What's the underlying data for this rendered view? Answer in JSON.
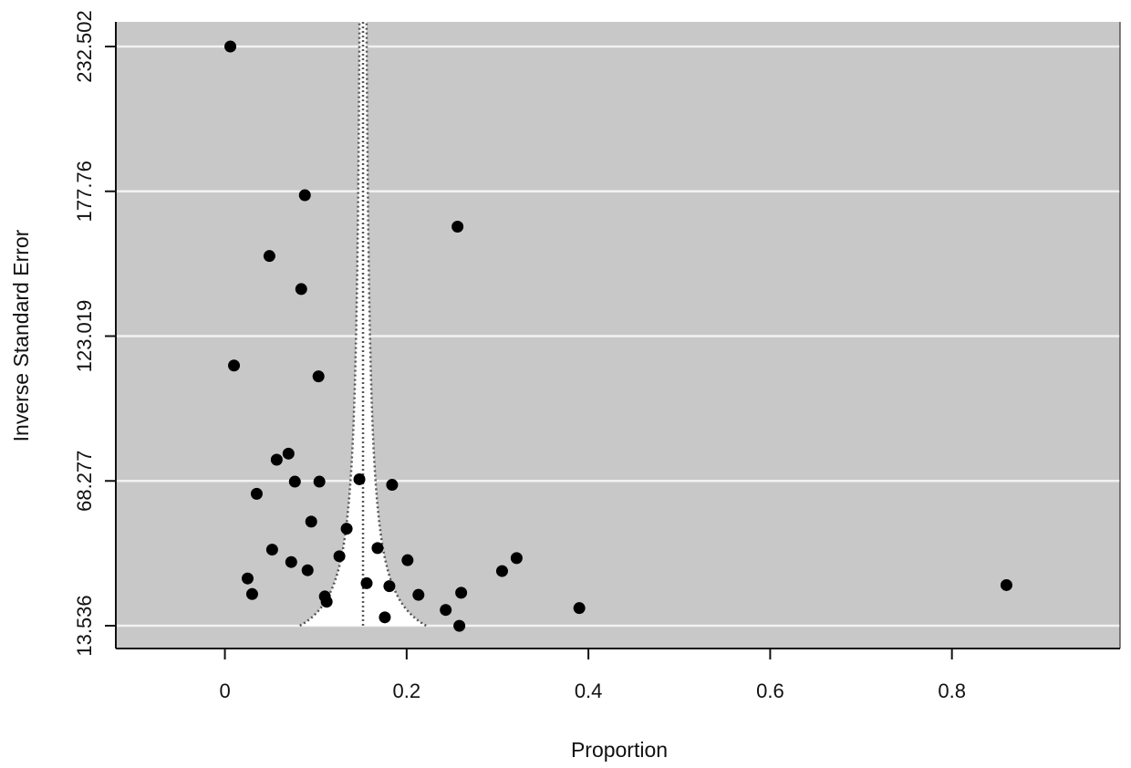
{
  "chart_data": {
    "type": "scatter",
    "title": "",
    "xlabel": "Proportion",
    "ylabel": "Inverse Standard Error",
    "xlim": [
      -0.12,
      0.985
    ],
    "ylim": [
      13.536,
      232.502
    ],
    "x_ticks": [
      0,
      0.2,
      0.4,
      0.6,
      0.8
    ],
    "x_tick_labels": [
      "0",
      "0.2",
      "0.4",
      "0.6",
      "0.8"
    ],
    "y_ticks": [
      13.536,
      68.277,
      123.019,
      177.76,
      232.502
    ],
    "y_tick_labels": [
      "13.536",
      "68.277",
      "123.019",
      "177.76",
      "232.502"
    ],
    "grid": "horizontal",
    "funnel": {
      "center": 0.152,
      "style": "dotted"
    },
    "colors": {
      "background": "#c8c8c8",
      "grid": "#f2f2f2",
      "funnel_fill": "#ffffff",
      "points": "#000000"
    },
    "points": [
      {
        "x": 0.006,
        "y": 232.5
      },
      {
        "x": 0.088,
        "y": 176.3
      },
      {
        "x": 0.256,
        "y": 164.4
      },
      {
        "x": 0.049,
        "y": 153.3
      },
      {
        "x": 0.084,
        "y": 140.8
      },
      {
        "x": 0.01,
        "y": 111.9
      },
      {
        "x": 0.103,
        "y": 107.8
      },
      {
        "x": 0.07,
        "y": 78.6
      },
      {
        "x": 0.057,
        "y": 76.3
      },
      {
        "x": 0.077,
        "y": 68.0
      },
      {
        "x": 0.104,
        "y": 68.0
      },
      {
        "x": 0.148,
        "y": 68.9
      },
      {
        "x": 0.184,
        "y": 66.8
      },
      {
        "x": 0.035,
        "y": 63.4
      },
      {
        "x": 0.095,
        "y": 52.9
      },
      {
        "x": 0.134,
        "y": 50.2
      },
      {
        "x": 0.052,
        "y": 42.3
      },
      {
        "x": 0.168,
        "y": 42.9
      },
      {
        "x": 0.126,
        "y": 39.8
      },
      {
        "x": 0.201,
        "y": 38.3
      },
      {
        "x": 0.073,
        "y": 37.6
      },
      {
        "x": 0.091,
        "y": 34.5
      },
      {
        "x": 0.321,
        "y": 39.1
      },
      {
        "x": 0.305,
        "y": 34.2
      },
      {
        "x": 0.025,
        "y": 31.4
      },
      {
        "x": 0.156,
        "y": 29.6
      },
      {
        "x": 0.181,
        "y": 28.5
      },
      {
        "x": 0.03,
        "y": 25.5
      },
      {
        "x": 0.213,
        "y": 25.2
      },
      {
        "x": 0.26,
        "y": 26.0
      },
      {
        "x": 0.11,
        "y": 24.6
      },
      {
        "x": 0.112,
        "y": 22.6
      },
      {
        "x": 0.243,
        "y": 19.5
      },
      {
        "x": 0.39,
        "y": 20.2
      },
      {
        "x": 0.176,
        "y": 16.7
      },
      {
        "x": 0.258,
        "y": 13.5
      },
      {
        "x": 0.86,
        "y": 28.9
      }
    ]
  }
}
